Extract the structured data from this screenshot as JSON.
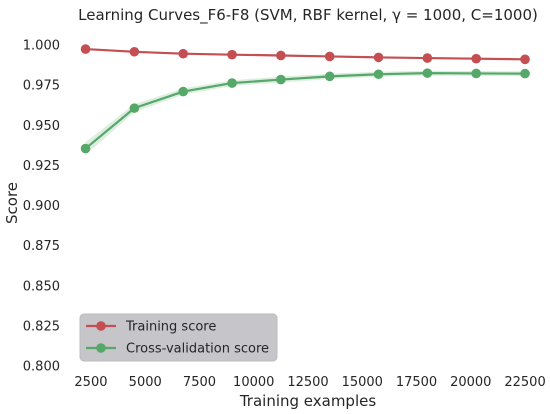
{
  "chart_data": {
    "type": "line",
    "title": "Learning Curves_F6-F8 (SVM, RBF kernel, γ = 1000, C=1000)",
    "xlabel": "Training examples",
    "ylabel": "Score",
    "xlim": [
      1350,
      23650
    ],
    "ylim": [
      0.8,
      1.01
    ],
    "xticks": [
      2500,
      5000,
      7500,
      10000,
      12500,
      15000,
      17500,
      20000,
      22500
    ],
    "yticks": [
      0.8,
      0.825,
      0.85,
      0.875,
      0.9,
      0.925,
      0.95,
      0.975,
      1.0
    ],
    "xtick_labels": [
      "2500",
      "5000",
      "7500",
      "10000",
      "12500",
      "15000",
      "17500",
      "20000",
      "22500"
    ],
    "ytick_labels": [
      "0.800",
      "0.825",
      "0.850",
      "0.875",
      "0.900",
      "0.925",
      "0.950",
      "0.975",
      "1.000"
    ],
    "grid": false,
    "legend_position": "lower-left",
    "x": [
      2250,
      4500,
      6750,
      9000,
      11250,
      13500,
      15750,
      18000,
      20250,
      22500
    ],
    "series": [
      {
        "name": "Training score",
        "color": "#c44e52",
        "values": [
          0.9975,
          0.9958,
          0.9946,
          0.994,
          0.9935,
          0.9929,
          0.9923,
          0.9919,
          0.9915,
          0.9911
        ],
        "std": [
          0.0006,
          0.0006,
          0.0006,
          0.0005,
          0.0005,
          0.0005,
          0.0005,
          0.0005,
          0.0005,
          0.0005
        ]
      },
      {
        "name": "Cross-validation score",
        "color": "#55a868",
        "values": [
          0.9355,
          0.9607,
          0.971,
          0.9763,
          0.9785,
          0.9805,
          0.9818,
          0.9825,
          0.9823,
          0.9822
        ],
        "std": [
          0.004,
          0.0025,
          0.002,
          0.0018,
          0.0018,
          0.0017,
          0.0016,
          0.0015,
          0.0015,
          0.0015
        ]
      }
    ]
  }
}
